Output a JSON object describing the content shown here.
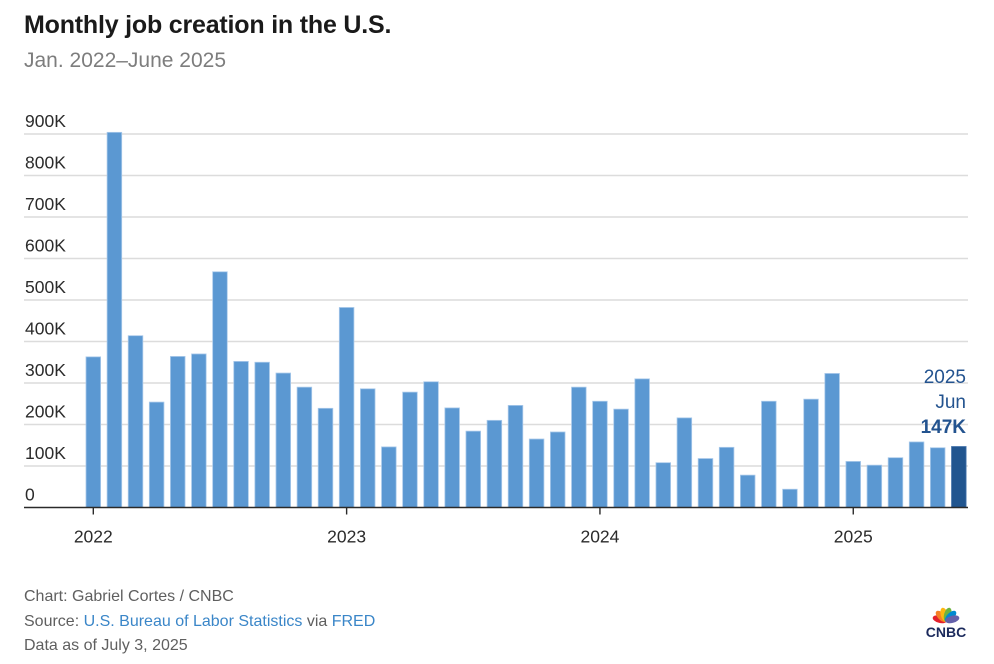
{
  "header": {
    "title": "Monthly job creation in the U.S.",
    "subtitle": "Jan. 2022–June 2025"
  },
  "colors": {
    "bar": "#5b98d2",
    "bar_highlight": "#21558f",
    "annotation": "#23538f",
    "link": "#3a86c8",
    "gridline": "#dcdcdc"
  },
  "chart_data": {
    "type": "bar",
    "title": "Monthly job creation in the U.S.",
    "subtitle": "Jan. 2022–June 2025",
    "xlabel": "",
    "ylabel": "",
    "ylim": [
      0,
      900000
    ],
    "grid": true,
    "yticks": [
      0,
      100000,
      200000,
      300000,
      400000,
      500000,
      600000,
      700000,
      800000,
      900000
    ],
    "ytick_labels": [
      "0",
      "100K",
      "200K",
      "300K",
      "400K",
      "500K",
      "600K",
      "700K",
      "800K",
      "900K"
    ],
    "xtick_labels": [
      "2022",
      "2023",
      "2024",
      "2025"
    ],
    "xtick_positions": [
      "2022-01",
      "2023-01",
      "2024-01",
      "2025-01"
    ],
    "categories": [
      "2022-01",
      "2022-02",
      "2022-03",
      "2022-04",
      "2022-05",
      "2022-06",
      "2022-07",
      "2022-08",
      "2022-09",
      "2022-10",
      "2022-11",
      "2022-12",
      "2023-01",
      "2023-02",
      "2023-03",
      "2023-04",
      "2023-05",
      "2023-06",
      "2023-07",
      "2023-08",
      "2023-09",
      "2023-10",
      "2023-11",
      "2023-12",
      "2024-01",
      "2024-02",
      "2024-03",
      "2024-04",
      "2024-05",
      "2024-06",
      "2024-07",
      "2024-08",
      "2024-09",
      "2024-10",
      "2024-11",
      "2024-12",
      "2025-01",
      "2025-02",
      "2025-03",
      "2025-04",
      "2025-05",
      "2025-06"
    ],
    "values": [
      363000,
      904000,
      414000,
      254000,
      364000,
      370000,
      568000,
      352000,
      350000,
      324000,
      290000,
      239000,
      482000,
      286000,
      146000,
      278000,
      303000,
      240000,
      184000,
      210000,
      246000,
      165000,
      182000,
      290000,
      256000,
      237000,
      310000,
      108000,
      216000,
      118000,
      145000,
      78000,
      256000,
      44000,
      261000,
      323000,
      111000,
      102000,
      120000,
      158000,
      144000,
      147000
    ],
    "highlight_index": 41,
    "annotation": {
      "year": "2025",
      "month": "Jun",
      "value_label": "147K"
    }
  },
  "footer": {
    "credit": "Chart: Gabriel Cortes / CNBC",
    "source_prefix": "Source: ",
    "source_link1": "U.S. Bureau of Labor Statistics",
    "source_via": " via ",
    "source_link2": "FRED",
    "data_as_of": "Data as of July 3, 2025"
  },
  "logo": {
    "text": "CNBC",
    "feather_colors": [
      "#e2202c",
      "#f58025",
      "#fcb711",
      "#6db33f",
      "#0089d0",
      "#6460aa"
    ]
  }
}
